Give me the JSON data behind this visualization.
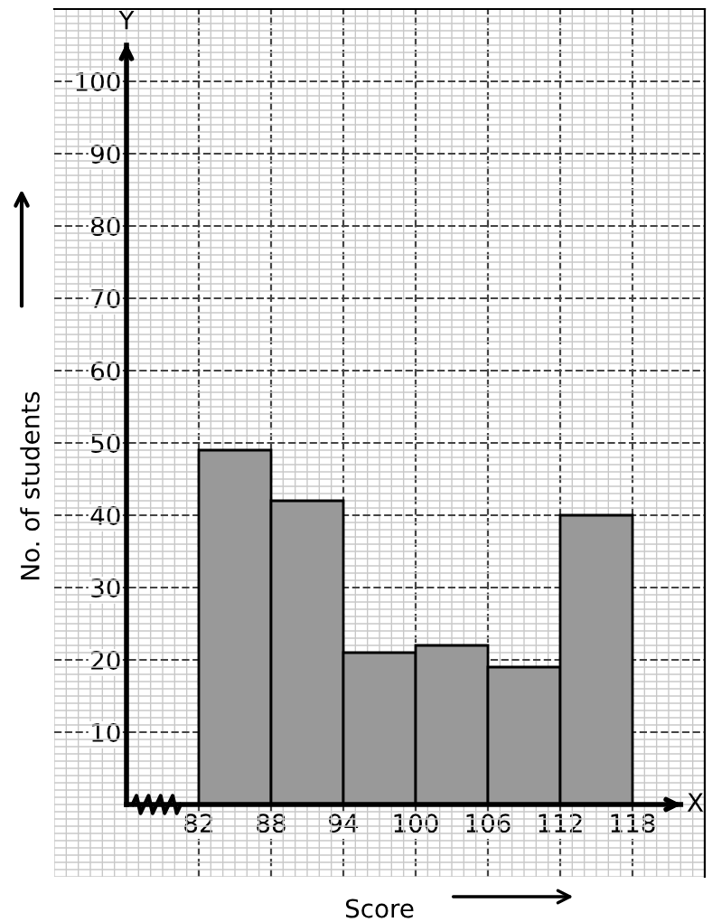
{
  "chart_data": {
    "type": "histogram",
    "xlabel": "Score",
    "ylabel": "No. of students",
    "bins": [
      82,
      88,
      94,
      100,
      106,
      112,
      118
    ],
    "values": [
      49,
      42,
      21,
      22,
      19,
      40
    ],
    "color": "#999999",
    "xlim": [
      70,
      124
    ],
    "ylim": [
      -10,
      110
    ],
    "xticks": [
      82,
      88,
      94,
      100,
      106,
      112,
      118
    ],
    "yticks": [
      10,
      20,
      30,
      40,
      50,
      60,
      70,
      80,
      90,
      100
    ],
    "annotations": [
      "X",
      "Y"
    ],
    "grid": true
  }
}
